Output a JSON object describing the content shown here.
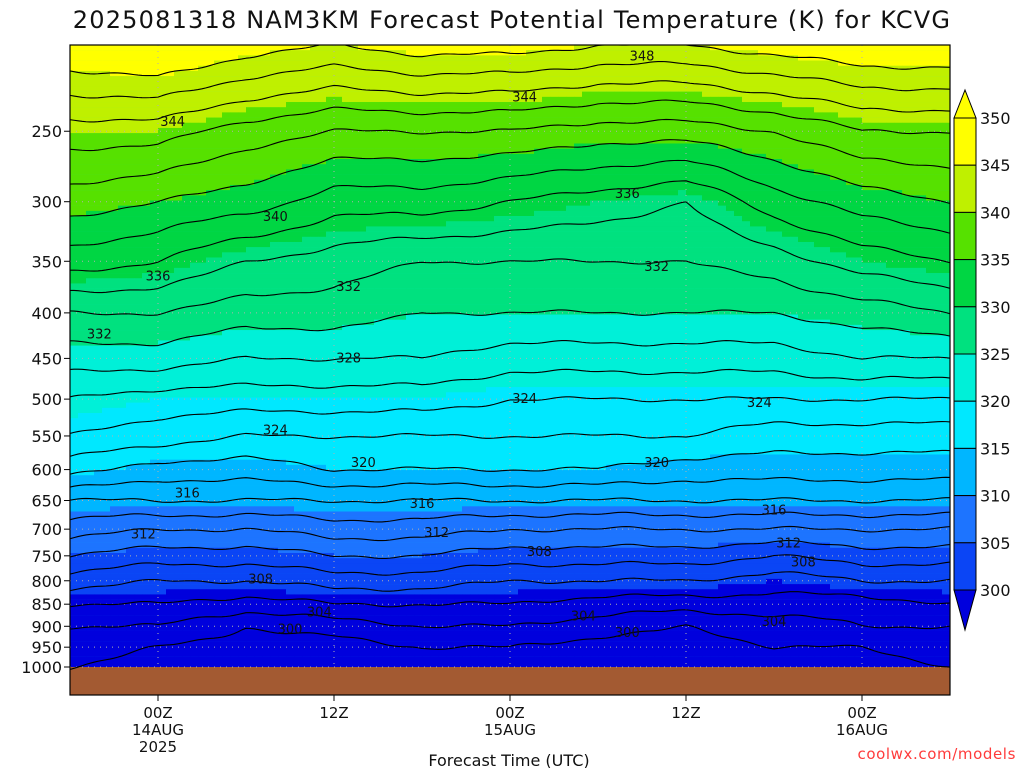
{
  "chart_data": {
    "type": "contour",
    "title": "2025081318 NAM3KM Forecast Potential Temperature (K) for KCVG",
    "xlabel": "Forecast Time (UTC)",
    "ylabel": "",
    "x_ticks": [
      {
        "label": "00Z\n14AUG\n2025",
        "hours_from_init": 6
      },
      {
        "label": "12Z",
        "hours_from_init": 18
      },
      {
        "label": "00Z\n15AUG",
        "hours_from_init": 30
      },
      {
        "label": "12Z",
        "hours_from_init": 42
      },
      {
        "label": "00Z\n16AUG",
        "hours_from_init": 54
      }
    ],
    "x_range_hours": [
      0,
      60
    ],
    "y_ticks": [
      250,
      300,
      350,
      400,
      450,
      500,
      550,
      600,
      650,
      700,
      750,
      800,
      850,
      900,
      950,
      1000
    ],
    "y_range": [
      200,
      1000
    ],
    "y_scale": "log-pressure",
    "contour_interval": 2,
    "shading_levels": [
      300,
      305,
      310,
      315,
      320,
      325,
      330,
      335,
      340,
      345,
      350
    ],
    "colorbar_labels": [
      "300",
      "305",
      "310",
      "315",
      "320",
      "325",
      "330",
      "335",
      "340",
      "345",
      "350"
    ],
    "contour_labels": [
      {
        "text": "348",
        "hour": 39.0,
        "pressure": 206
      },
      {
        "text": "344",
        "hour": 7.0,
        "pressure": 244
      },
      {
        "text": "344",
        "hour": 31.0,
        "pressure": 229
      },
      {
        "text": "340",
        "hour": 14.0,
        "pressure": 312
      },
      {
        "text": "336",
        "hour": 6.0,
        "pressure": 364
      },
      {
        "text": "336",
        "hour": 38.0,
        "pressure": 294
      },
      {
        "text": "332",
        "hour": 2.0,
        "pressure": 423
      },
      {
        "text": "332",
        "hour": 19.0,
        "pressure": 374
      },
      {
        "text": "332",
        "hour": 40.0,
        "pressure": 355
      },
      {
        "text": "328",
        "hour": 19.0,
        "pressure": 450
      },
      {
        "text": "324",
        "hour": 14.0,
        "pressure": 542
      },
      {
        "text": "324",
        "hour": 31.0,
        "pressure": 500
      },
      {
        "text": "324",
        "hour": 47.0,
        "pressure": 505
      },
      {
        "text": "320",
        "hour": 20.0,
        "pressure": 590
      },
      {
        "text": "320",
        "hour": 40.0,
        "pressure": 590
      },
      {
        "text": "316",
        "hour": 8.0,
        "pressure": 638
      },
      {
        "text": "316",
        "hour": 24.0,
        "pressure": 656
      },
      {
        "text": "316",
        "hour": 48.0,
        "pressure": 667
      },
      {
        "text": "312",
        "hour": 5.0,
        "pressure": 710
      },
      {
        "text": "312",
        "hour": 25.0,
        "pressure": 707
      },
      {
        "text": "312",
        "hour": 49.0,
        "pressure": 726
      },
      {
        "text": "308",
        "hour": 13.0,
        "pressure": 797
      },
      {
        "text": "308",
        "hour": 32.0,
        "pressure": 743
      },
      {
        "text": "308",
        "hour": 50.0,
        "pressure": 763
      },
      {
        "text": "304",
        "hour": 17.0,
        "pressure": 868
      },
      {
        "text": "304",
        "hour": 35.0,
        "pressure": 877
      },
      {
        "text": "304",
        "hour": 48.0,
        "pressure": 890
      },
      {
        "text": "300",
        "hour": 15.0,
        "pressure": 908
      },
      {
        "text": "300",
        "hour": 38.0,
        "pressure": 916
      }
    ],
    "profiles": [
      {
        "hour": 0,
        "values": [
          {
            "p": 200,
            "theta": 352.0
          },
          {
            "p": 250,
            "theta": 345.0
          },
          {
            "p": 300,
            "theta": 341.0
          },
          {
            "p": 350,
            "theta": 337.0
          },
          {
            "p": 400,
            "theta": 332.0
          },
          {
            "p": 450,
            "theta": 329.0
          },
          {
            "p": 500,
            "theta": 326.0
          },
          {
            "p": 550,
            "theta": 324.0
          },
          {
            "p": 600,
            "theta": 321.0
          },
          {
            "p": 650,
            "theta": 316.0
          },
          {
            "p": 700,
            "theta": 313.0
          },
          {
            "p": 750,
            "theta": 310.0
          },
          {
            "p": 800,
            "theta": 307.0
          },
          {
            "p": 850,
            "theta": 304.0
          },
          {
            "p": 900,
            "theta": 302.0
          },
          {
            "p": 950,
            "theta": 301.0
          },
          {
            "p": 1000,
            "theta": 300.0
          }
        ]
      },
      {
        "hour": 6,
        "values": [
          {
            "p": 200,
            "theta": 353.0
          },
          {
            "p": 250,
            "theta": 345.0
          },
          {
            "p": 300,
            "theta": 340.0
          },
          {
            "p": 350,
            "theta": 336.0
          },
          {
            "p": 400,
            "theta": 332.0
          },
          {
            "p": 450,
            "theta": 329.0
          },
          {
            "p": 500,
            "theta": 325.0
          },
          {
            "p": 550,
            "theta": 323.0
          },
          {
            "p": 600,
            "theta": 319.0
          },
          {
            "p": 650,
            "theta": 316.0
          },
          {
            "p": 700,
            "theta": 312.0
          },
          {
            "p": 750,
            "theta": 309.0
          },
          {
            "p": 800,
            "theta": 306.0
          },
          {
            "p": 850,
            "theta": 304.0
          },
          {
            "p": 900,
            "theta": 302.0
          },
          {
            "p": 950,
            "theta": 300.0
          },
          {
            "p": 1000,
            "theta": 299.0
          }
        ]
      },
      {
        "hour": 12,
        "values": [
          {
            "p": 200,
            "theta": 351.0
          },
          {
            "p": 250,
            "theta": 343.0
          },
          {
            "p": 300,
            "theta": 339.0
          },
          {
            "p": 350,
            "theta": 334.0
          },
          {
            "p": 400,
            "theta": 331.0
          },
          {
            "p": 450,
            "theta": 328.0
          },
          {
            "p": 500,
            "theta": 325.0
          },
          {
            "p": 550,
            "theta": 322.0
          },
          {
            "p": 600,
            "theta": 319.0
          },
          {
            "p": 650,
            "theta": 316.0
          },
          {
            "p": 700,
            "theta": 312.0
          },
          {
            "p": 750,
            "theta": 309.0
          },
          {
            "p": 800,
            "theta": 306.0
          },
          {
            "p": 850,
            "theta": 303.0
          },
          {
            "p": 900,
            "theta": 300.0
          },
          {
            "p": 950,
            "theta": 299.0
          },
          {
            "p": 1000,
            "theta": 298.0
          }
        ]
      },
      {
        "hour": 18,
        "values": [
          {
            "p": 200,
            "theta": 350.0
          },
          {
            "p": 250,
            "theta": 342.0
          },
          {
            "p": 300,
            "theta": 337.0
          },
          {
            "p": 350,
            "theta": 333.0
          },
          {
            "p": 400,
            "theta": 331.0
          },
          {
            "p": 450,
            "theta": 328.0
          },
          {
            "p": 500,
            "theta": 325.0
          },
          {
            "p": 550,
            "theta": 322.0
          },
          {
            "p": 600,
            "theta": 320.0
          },
          {
            "p": 650,
            "theta": 316.0
          },
          {
            "p": 700,
            "theta": 313.0
          },
          {
            "p": 750,
            "theta": 310.0
          },
          {
            "p": 800,
            "theta": 307.0
          },
          {
            "p": 850,
            "theta": 304.0
          },
          {
            "p": 900,
            "theta": 301.0
          },
          {
            "p": 950,
            "theta": 299.0
          },
          {
            "p": 1000,
            "theta": 298.0
          }
        ]
      },
      {
        "hour": 24,
        "values": [
          {
            "p": 200,
            "theta": 351.0
          },
          {
            "p": 250,
            "theta": 342.0
          },
          {
            "p": 300,
            "theta": 337.0
          },
          {
            "p": 350,
            "theta": 332.0
          },
          {
            "p": 400,
            "theta": 330.0
          },
          {
            "p": 450,
            "theta": 328.0
          },
          {
            "p": 500,
            "theta": 325.0
          },
          {
            "p": 550,
            "theta": 322.0
          },
          {
            "p": 600,
            "theta": 320.0
          },
          {
            "p": 650,
            "theta": 316.0
          },
          {
            "p": 700,
            "theta": 313.0
          },
          {
            "p": 750,
            "theta": 310.0
          },
          {
            "p": 800,
            "theta": 307.0
          },
          {
            "p": 850,
            "theta": 304.0
          },
          {
            "p": 900,
            "theta": 302.0
          },
          {
            "p": 950,
            "theta": 300.0
          },
          {
            "p": 1000,
            "theta": 299.0
          }
        ]
      },
      {
        "hour": 30,
        "values": [
          {
            "p": 200,
            "theta": 351.0
          },
          {
            "p": 250,
            "theta": 342.0
          },
          {
            "p": 300,
            "theta": 336.0
          },
          {
            "p": 350,
            "theta": 332.0
          },
          {
            "p": 400,
            "theta": 330.0
          },
          {
            "p": 450,
            "theta": 327.0
          },
          {
            "p": 500,
            "theta": 324.0
          },
          {
            "p": 550,
            "theta": 322.0
          },
          {
            "p": 600,
            "theta": 320.0
          },
          {
            "p": 650,
            "theta": 316.0
          },
          {
            "p": 700,
            "theta": 312.0
          },
          {
            "p": 750,
            "theta": 309.0
          },
          {
            "p": 800,
            "theta": 306.0
          },
          {
            "p": 850,
            "theta": 304.0
          },
          {
            "p": 900,
            "theta": 302.0
          },
          {
            "p": 950,
            "theta": 300.0
          },
          {
            "p": 1000,
            "theta": 299.0
          }
        ]
      },
      {
        "hour": 36,
        "values": [
          {
            "p": 200,
            "theta": 350.0
          },
          {
            "p": 250,
            "theta": 341.0
          },
          {
            "p": 300,
            "theta": 335.0
          },
          {
            "p": 350,
            "theta": 332.0
          },
          {
            "p": 400,
            "theta": 330.0
          },
          {
            "p": 450,
            "theta": 327.0
          },
          {
            "p": 500,
            "theta": 324.0
          },
          {
            "p": 550,
            "theta": 322.0
          },
          {
            "p": 600,
            "theta": 320.0
          },
          {
            "p": 650,
            "theta": 316.0
          },
          {
            "p": 700,
            "theta": 312.0
          },
          {
            "p": 750,
            "theta": 309.0
          },
          {
            "p": 800,
            "theta": 306.0
          },
          {
            "p": 850,
            "theta": 303.0
          },
          {
            "p": 900,
            "theta": 301.0
          },
          {
            "p": 950,
            "theta": 299.0
          },
          {
            "p": 1000,
            "theta": 298.0
          }
        ]
      },
      {
        "hour": 42,
        "values": [
          {
            "p": 200,
            "theta": 350.0
          },
          {
            "p": 250,
            "theta": 341.0
          },
          {
            "p": 300,
            "theta": 334.0
          },
          {
            "p": 350,
            "theta": 332.0
          },
          {
            "p": 400,
            "theta": 330.0
          },
          {
            "p": 450,
            "theta": 327.0
          },
          {
            "p": 500,
            "theta": 324.0
          },
          {
            "p": 550,
            "theta": 322.0
          },
          {
            "p": 600,
            "theta": 319.0
          },
          {
            "p": 650,
            "theta": 316.0
          },
          {
            "p": 700,
            "theta": 312.0
          },
          {
            "p": 750,
            "theta": 309.0
          },
          {
            "p": 800,
            "theta": 306.0
          },
          {
            "p": 850,
            "theta": 303.0
          },
          {
            "p": 900,
            "theta": 300.0
          },
          {
            "p": 950,
            "theta": 299.0
          },
          {
            "p": 1000,
            "theta": 298.0
          }
        ]
      },
      {
        "hour": 48,
        "values": [
          {
            "p": 200,
            "theta": 351.0
          },
          {
            "p": 250,
            "theta": 342.0
          },
          {
            "p": 300,
            "theta": 337.0
          },
          {
            "p": 350,
            "theta": 333.0
          },
          {
            "p": 400,
            "theta": 330.0
          },
          {
            "p": 450,
            "theta": 327.0
          },
          {
            "p": 500,
            "theta": 324.0
          },
          {
            "p": 550,
            "theta": 321.0
          },
          {
            "p": 600,
            "theta": 319.0
          },
          {
            "p": 650,
            "theta": 316.0
          },
          {
            "p": 700,
            "theta": 312.0
          },
          {
            "p": 750,
            "theta": 308.0
          },
          {
            "p": 800,
            "theta": 305.0
          },
          {
            "p": 850,
            "theta": 303.0
          },
          {
            "p": 900,
            "theta": 301.0
          },
          {
            "p": 950,
            "theta": 300.0
          },
          {
            "p": 1000,
            "theta": 299.0
          }
        ]
      },
      {
        "hour": 54,
        "values": [
          {
            "p": 200,
            "theta": 352.0
          },
          {
            "p": 250,
            "theta": 344.0
          },
          {
            "p": 300,
            "theta": 339.0
          },
          {
            "p": 350,
            "theta": 335.0
          },
          {
            "p": 400,
            "theta": 331.0
          },
          {
            "p": 450,
            "theta": 328.0
          },
          {
            "p": 500,
            "theta": 324.0
          },
          {
            "p": 550,
            "theta": 321.0
          },
          {
            "p": 600,
            "theta": 319.0
          },
          {
            "p": 650,
            "theta": 316.0
          },
          {
            "p": 700,
            "theta": 312.0
          },
          {
            "p": 750,
            "theta": 309.0
          },
          {
            "p": 800,
            "theta": 306.0
          },
          {
            "p": 850,
            "theta": 303.0
          },
          {
            "p": 900,
            "theta": 302.0
          },
          {
            "p": 950,
            "theta": 300.0
          },
          {
            "p": 1000,
            "theta": 299.0
          }
        ]
      },
      {
        "hour": 60,
        "values": [
          {
            "p": 200,
            "theta": 352.0
          },
          {
            "p": 250,
            "theta": 344.0
          },
          {
            "p": 300,
            "theta": 340.0
          },
          {
            "p": 350,
            "theta": 336.0
          },
          {
            "p": 400,
            "theta": 332.0
          },
          {
            "p": 450,
            "theta": 328.0
          },
          {
            "p": 500,
            "theta": 324.0
          },
          {
            "p": 550,
            "theta": 321.0
          },
          {
            "p": 600,
            "theta": 319.0
          },
          {
            "p": 650,
            "theta": 316.0
          },
          {
            "p": 700,
            "theta": 312.0
          },
          {
            "p": 750,
            "theta": 309.0
          },
          {
            "p": 800,
            "theta": 306.0
          },
          {
            "p": 850,
            "theta": 304.0
          },
          {
            "p": 900,
            "theta": 302.0
          },
          {
            "p": 950,
            "theta": 301.0
          },
          {
            "p": 1000,
            "theta": 300.0
          }
        ]
      }
    ],
    "footer": "coolwx.com/models",
    "colors": {
      "c300": "#0000dd",
      "c305": "#0b45f5",
      "c310": "#1d74ff",
      "c315": "#00b6ff",
      "c320": "#00e8ff",
      "c325": "#00f0d8",
      "c330": "#00e17f",
      "c335": "#00d643",
      "c340": "#56e100",
      "c345": "#bff000",
      "c350": "#ffff00",
      "ground": "#a35a32",
      "grid": "#b0b0b0",
      "contour": "#000000",
      "credit": "#ff3b3b"
    }
  }
}
